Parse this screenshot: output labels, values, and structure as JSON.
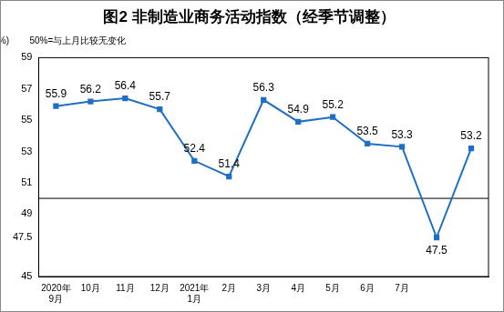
{
  "chart_data": {
    "type": "line",
    "title": "图2 非制造业商务活动指数（经季节调整）",
    "y_label": "(%)",
    "note": "50%=与上月比较无变化",
    "categories": [
      "2020年9月",
      "10月",
      "11月",
      "12月",
      "2021年1月",
      "2月",
      "3月",
      "4月",
      "5月",
      "6月",
      "7月",
      null,
      null
    ],
    "values": [
      55.9,
      56.2,
      56.4,
      55.7,
      52.4,
      51.4,
      56.3,
      54.9,
      55.2,
      53.5,
      53.3,
      47.5,
      53.2
    ],
    "color": "#1f6fc4",
    "marker": "square",
    "line_style": "solid",
    "data_labels": true,
    "grid": false,
    "reference_line": 50,
    "ylim": [
      45,
      59
    ],
    "yticks": [
      45,
      47.5,
      49,
      51,
      53,
      55,
      57,
      59
    ]
  }
}
